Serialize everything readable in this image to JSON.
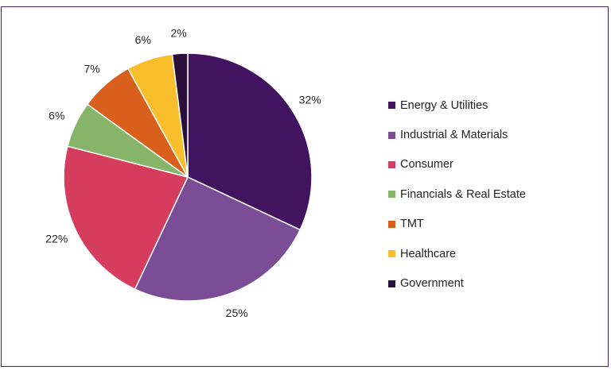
{
  "chart_data": {
    "type": "pie",
    "start_angle_deg": 0,
    "direction": "clockwise",
    "legend_position": "right",
    "series": [
      {
        "name": "Energy & Utilities",
        "value": 32,
        "label": "32%",
        "color": "#42145f"
      },
      {
        "name": "Industrial & Materials",
        "value": 25,
        "label": "25%",
        "color": "#7a4d96"
      },
      {
        "name": "Consumer",
        "value": 22,
        "label": "22%",
        "color": "#d63c5e"
      },
      {
        "name": "Financials & Real Estate",
        "value": 6,
        "label": "6%",
        "color": "#86b56a"
      },
      {
        "name": "TMT",
        "value": 7,
        "label": "7%",
        "color": "#d9601c"
      },
      {
        "name": "Healthcare",
        "value": 6,
        "label": "6%",
        "color": "#f9be2b"
      },
      {
        "name": "Government",
        "value": 2,
        "label": "2%",
        "color": "#2b0f3b"
      }
    ]
  }
}
